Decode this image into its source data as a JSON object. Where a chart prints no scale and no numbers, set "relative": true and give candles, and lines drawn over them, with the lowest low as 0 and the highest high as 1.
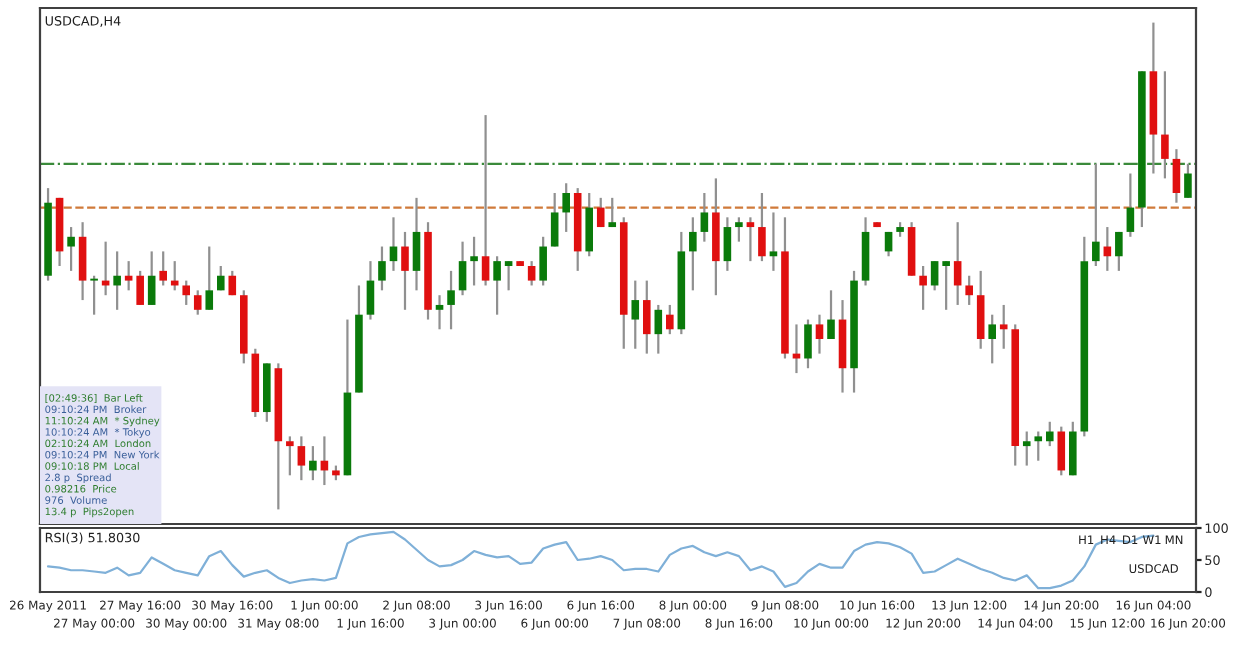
{
  "chart_data": [
    {
      "type": "candlestick",
      "title": "USDCAD,H4",
      "relative": true,
      "categories": [
        null,
        null,
        null,
        null,
        null,
        null,
        null,
        null,
        null,
        null,
        null,
        null,
        null,
        null,
        null,
        null,
        null,
        null,
        null,
        null,
        null,
        null,
        null,
        null,
        null,
        null,
        null,
        null,
        null,
        null,
        null,
        null,
        null,
        null,
        null,
        null,
        null,
        null,
        null,
        null,
        null,
        null,
        null,
        null,
        null,
        null,
        null,
        null,
        null,
        null,
        null,
        null,
        null,
        null,
        null,
        null,
        null,
        null,
        null,
        null,
        null,
        null,
        null,
        null,
        null,
        null,
        null,
        null,
        null,
        null,
        null,
        null,
        null,
        null,
        null,
        null,
        null,
        null,
        null,
        null,
        null,
        null,
        null,
        null,
        null,
        null,
        null,
        null,
        null,
        null,
        null,
        null,
        null,
        null,
        null,
        null,
        null,
        null,
        null,
        null
      ],
      "ohlc": [
        [
          0.48,
          0.66,
          0.47,
          0.63
        ],
        [
          0.64,
          0.64,
          0.5,
          0.53
        ],
        [
          0.54,
          0.58,
          0.49,
          0.56
        ],
        [
          0.56,
          0.59,
          0.43,
          0.47
        ],
        [
          0.47,
          0.48,
          0.4,
          0.47
        ],
        [
          0.47,
          0.55,
          0.44,
          0.46
        ],
        [
          0.46,
          0.53,
          0.41,
          0.48
        ],
        [
          0.48,
          0.51,
          0.45,
          0.47
        ],
        [
          0.48,
          0.49,
          0.42,
          0.42
        ],
        [
          0.42,
          0.53,
          0.42,
          0.48
        ],
        [
          0.49,
          0.53,
          0.46,
          0.47
        ],
        [
          0.47,
          0.51,
          0.45,
          0.46
        ],
        [
          0.46,
          0.47,
          0.42,
          0.44
        ],
        [
          0.44,
          0.45,
          0.4,
          0.41
        ],
        [
          0.41,
          0.54,
          0.41,
          0.45
        ],
        [
          0.45,
          0.5,
          0.45,
          0.48
        ],
        [
          0.48,
          0.49,
          0.44,
          0.44
        ],
        [
          0.44,
          0.45,
          0.3,
          0.32
        ],
        [
          0.32,
          0.33,
          0.19,
          0.2
        ],
        [
          0.2,
          0.3,
          0.18,
          0.3
        ],
        [
          0.29,
          0.3,
          0,
          0.14
        ],
        [
          0.14,
          0.15,
          0.07,
          0.13
        ],
        [
          0.13,
          0.15,
          0.06,
          0.09
        ],
        [
          0.08,
          0.13,
          0.06,
          0.1
        ],
        [
          0.1,
          0.15,
          0.05,
          0.08
        ],
        [
          0.08,
          0.09,
          0.06,
          0.07
        ],
        [
          0.07,
          0.39,
          0.07,
          0.24
        ],
        [
          0.24,
          0.46,
          0.24,
          0.4
        ],
        [
          0.4,
          0.51,
          0.39,
          0.47
        ],
        [
          0.47,
          0.54,
          0.45,
          0.51
        ],
        [
          0.51,
          0.6,
          0.49,
          0.54
        ],
        [
          0.54,
          0.57,
          0.41,
          0.49
        ],
        [
          0.49,
          0.64,
          0.45,
          0.57
        ],
        [
          0.57,
          0.59,
          0.39,
          0.41
        ],
        [
          0.41,
          0.44,
          0.37,
          0.42
        ],
        [
          0.42,
          0.49,
          0.37,
          0.45
        ],
        [
          0.45,
          0.55,
          0.44,
          0.51
        ],
        [
          0.51,
          0.56,
          0.46,
          0.52
        ],
        [
          0.52,
          0.81,
          0.46,
          0.47
        ],
        [
          0.47,
          0.52,
          0.4,
          0.51
        ],
        [
          0.5,
          0.51,
          0.45,
          0.51
        ],
        [
          0.51,
          0.51,
          0.5,
          0.5
        ],
        [
          0.5,
          0.51,
          0.46,
          0.47
        ],
        [
          0.47,
          0.56,
          0.46,
          0.54
        ],
        [
          0.54,
          0.65,
          0.54,
          0.61
        ],
        [
          0.61,
          0.67,
          0.57,
          0.65
        ],
        [
          0.65,
          0.66,
          0.49,
          0.53
        ],
        [
          0.53,
          0.65,
          0.52,
          0.62
        ],
        [
          0.62,
          0.64,
          0.58,
          0.58
        ],
        [
          0.58,
          0.64,
          0.58,
          0.59
        ],
        [
          0.59,
          0.6,
          0.33,
          0.4
        ],
        [
          0.39,
          0.47,
          0.33,
          0.43
        ],
        [
          0.43,
          0.47,
          0.32,
          0.36
        ],
        [
          0.36,
          0.42,
          0.32,
          0.41
        ],
        [
          0.4,
          0.42,
          0.36,
          0.37
        ],
        [
          0.37,
          0.57,
          0.36,
          0.53
        ],
        [
          0.53,
          0.6,
          0.45,
          0.57
        ],
        [
          0.57,
          0.65,
          0.55,
          0.61
        ],
        [
          0.61,
          0.68,
          0.44,
          0.51
        ],
        [
          0.51,
          0.6,
          0.49,
          0.58
        ],
        [
          0.58,
          0.6,
          0.55,
          0.59
        ],
        [
          0.59,
          0.6,
          0.51,
          0.58
        ],
        [
          0.58,
          0.65,
          0.51,
          0.52
        ],
        [
          0.52,
          0.61,
          0.49,
          0.53
        ],
        [
          0.53,
          0.6,
          0.31,
          0.32
        ],
        [
          0.32,
          0.38,
          0.28,
          0.31
        ],
        [
          0.31,
          0.39,
          0.29,
          0.38
        ],
        [
          0.38,
          0.4,
          0.32,
          0.35
        ],
        [
          0.35,
          0.45,
          0.35,
          0.39
        ],
        [
          0.39,
          0.43,
          0.24,
          0.29
        ],
        [
          0.29,
          0.49,
          0.24,
          0.47
        ],
        [
          0.47,
          0.6,
          0.46,
          0.57
        ],
        [
          0.59,
          0.59,
          0.58,
          0.58
        ],
        [
          0.53,
          0.57,
          0.52,
          0.57
        ],
        [
          0.57,
          0.59,
          0.56,
          0.58
        ],
        [
          0.58,
          0.59,
          0.48,
          0.48
        ],
        [
          0.48,
          0.5,
          0.41,
          0.46
        ],
        [
          0.46,
          0.51,
          0.45,
          0.51
        ],
        [
          0.5,
          0.51,
          0.41,
          0.51
        ],
        [
          0.51,
          0.59,
          0.42,
          0.46
        ],
        [
          0.46,
          0.48,
          0.42,
          0.44
        ],
        [
          0.44,
          0.49,
          0.33,
          0.35
        ],
        [
          0.35,
          0.4,
          0.3,
          0.38
        ],
        [
          0.38,
          0.42,
          0.33,
          0.37
        ],
        [
          0.37,
          0.38,
          0.09,
          0.13
        ],
        [
          0.13,
          0.16,
          0.09,
          0.14
        ],
        [
          0.14,
          0.16,
          0.1,
          0.15
        ],
        [
          0.14,
          0.18,
          0.13,
          0.16
        ],
        [
          0.16,
          0.17,
          0.07,
          0.08
        ],
        [
          0.07,
          0.18,
          0.07,
          0.16
        ],
        [
          0.16,
          0.56,
          0.15,
          0.51
        ],
        [
          0.51,
          0.71,
          0.5,
          0.55
        ],
        [
          0.54,
          0.58,
          0.49,
          0.52
        ],
        [
          0.52,
          0.57,
          0.49,
          0.57
        ],
        [
          0.57,
          0.69,
          0.56,
          0.62
        ],
        [
          0.62,
          0.9,
          0.58,
          0.9
        ],
        [
          0.9,
          1,
          0.69,
          0.77
        ],
        [
          0.77,
          0.9,
          0.68,
          0.72
        ],
        [
          0.72,
          0.74,
          0.63,
          0.65
        ],
        [
          0.64,
          0.71,
          0.64,
          0.69
        ]
      ],
      "ref_lines": [
        {
          "axis": "y",
          "value": 0.71,
          "color": "#3a8a3a",
          "line_style": "dashdot"
        },
        {
          "axis": "y",
          "value": 0.62,
          "color": "#d07a3a",
          "line_style": "dashed"
        }
      ],
      "annotations": [
        "[02:49:36]  Bar Left",
        "09:10:24 PM  Broker",
        "11:10:24 AM  * Sydney",
        "10:10:24 AM  * Tokyo",
        "02:10:24 AM  London",
        "09:10:24 PM  New York",
        "09:10:18 PM  Local",
        "2.8 p  Spread",
        "0.98216  Price",
        "976  Volume",
        "13.4 p  Pips2open"
      ]
    },
    {
      "type": "line",
      "title": "RSI(3) 51.8030",
      "color": "#7fb0d8",
      "ylim": [
        0,
        100
      ],
      "yticks": [
        0,
        50,
        100
      ],
      "categories": [
        "26 May 2011",
        null,
        null,
        null,
        "27 May 00:00",
        null,
        null,
        null,
        "27 May 16:00",
        null,
        null,
        null,
        "30 May 00:00",
        null,
        null,
        null,
        "30 May 16:00",
        null,
        null,
        null,
        "31 May 08:00",
        null,
        null,
        null,
        "1 Jun 00:00",
        null,
        null,
        null,
        "1 Jun 16:00",
        null,
        null,
        null,
        "2 Jun 08:00",
        null,
        null,
        null,
        "3 Jun 00:00",
        null,
        null,
        null,
        "3 Jun 16:00",
        null,
        null,
        null,
        "6 Jun 00:00",
        null,
        null,
        null,
        "6 Jun 16:00",
        null,
        null,
        null,
        "7 Jun 08:00",
        null,
        null,
        null,
        "8 Jun 00:00",
        null,
        null,
        null,
        "8 Jun 16:00",
        null,
        null,
        null,
        "9 Jun 08:00",
        null,
        null,
        null,
        "10 Jun 00:00",
        null,
        null,
        null,
        "10 Jun 16:00",
        null,
        null,
        null,
        "12 Jun 20:00",
        null,
        null,
        null,
        "13 Jun 12:00",
        null,
        null,
        null,
        "14 Jun 04:00",
        null,
        null,
        null,
        "14 Jun 20:00",
        null,
        null,
        null,
        "15 Jun 12:00",
        null,
        null,
        null,
        "16 Jun 04:00",
        null,
        null,
        "16 Jun 20:00"
      ],
      "values": [
        40,
        38,
        34,
        34,
        32,
        30,
        38,
        26,
        30,
        54,
        44,
        34,
        30,
        26,
        56,
        64,
        42,
        24,
        30,
        34,
        22,
        14,
        18,
        20,
        18,
        22,
        76,
        86,
        90,
        92,
        94,
        82,
        66,
        50,
        40,
        42,
        50,
        64,
        58,
        54,
        56,
        44,
        46,
        68,
        74,
        78,
        50,
        52,
        56,
        50,
        34,
        36,
        36,
        32,
        58,
        68,
        72,
        62,
        56,
        62,
        56,
        34,
        40,
        32,
        8,
        14,
        32,
        44,
        38,
        38,
        64,
        74,
        78,
        76,
        70,
        60,
        30,
        32,
        42,
        52,
        44,
        36,
        30,
        22,
        18,
        26,
        6,
        6,
        10,
        18,
        40,
        74,
        82,
        80,
        78,
        86,
        88,
        null,
        null,
        null
      ],
      "annotations": [
        "USDCAD",
        "H1",
        "H4",
        "D1",
        "W1",
        "MN"
      ]
    }
  ]
}
